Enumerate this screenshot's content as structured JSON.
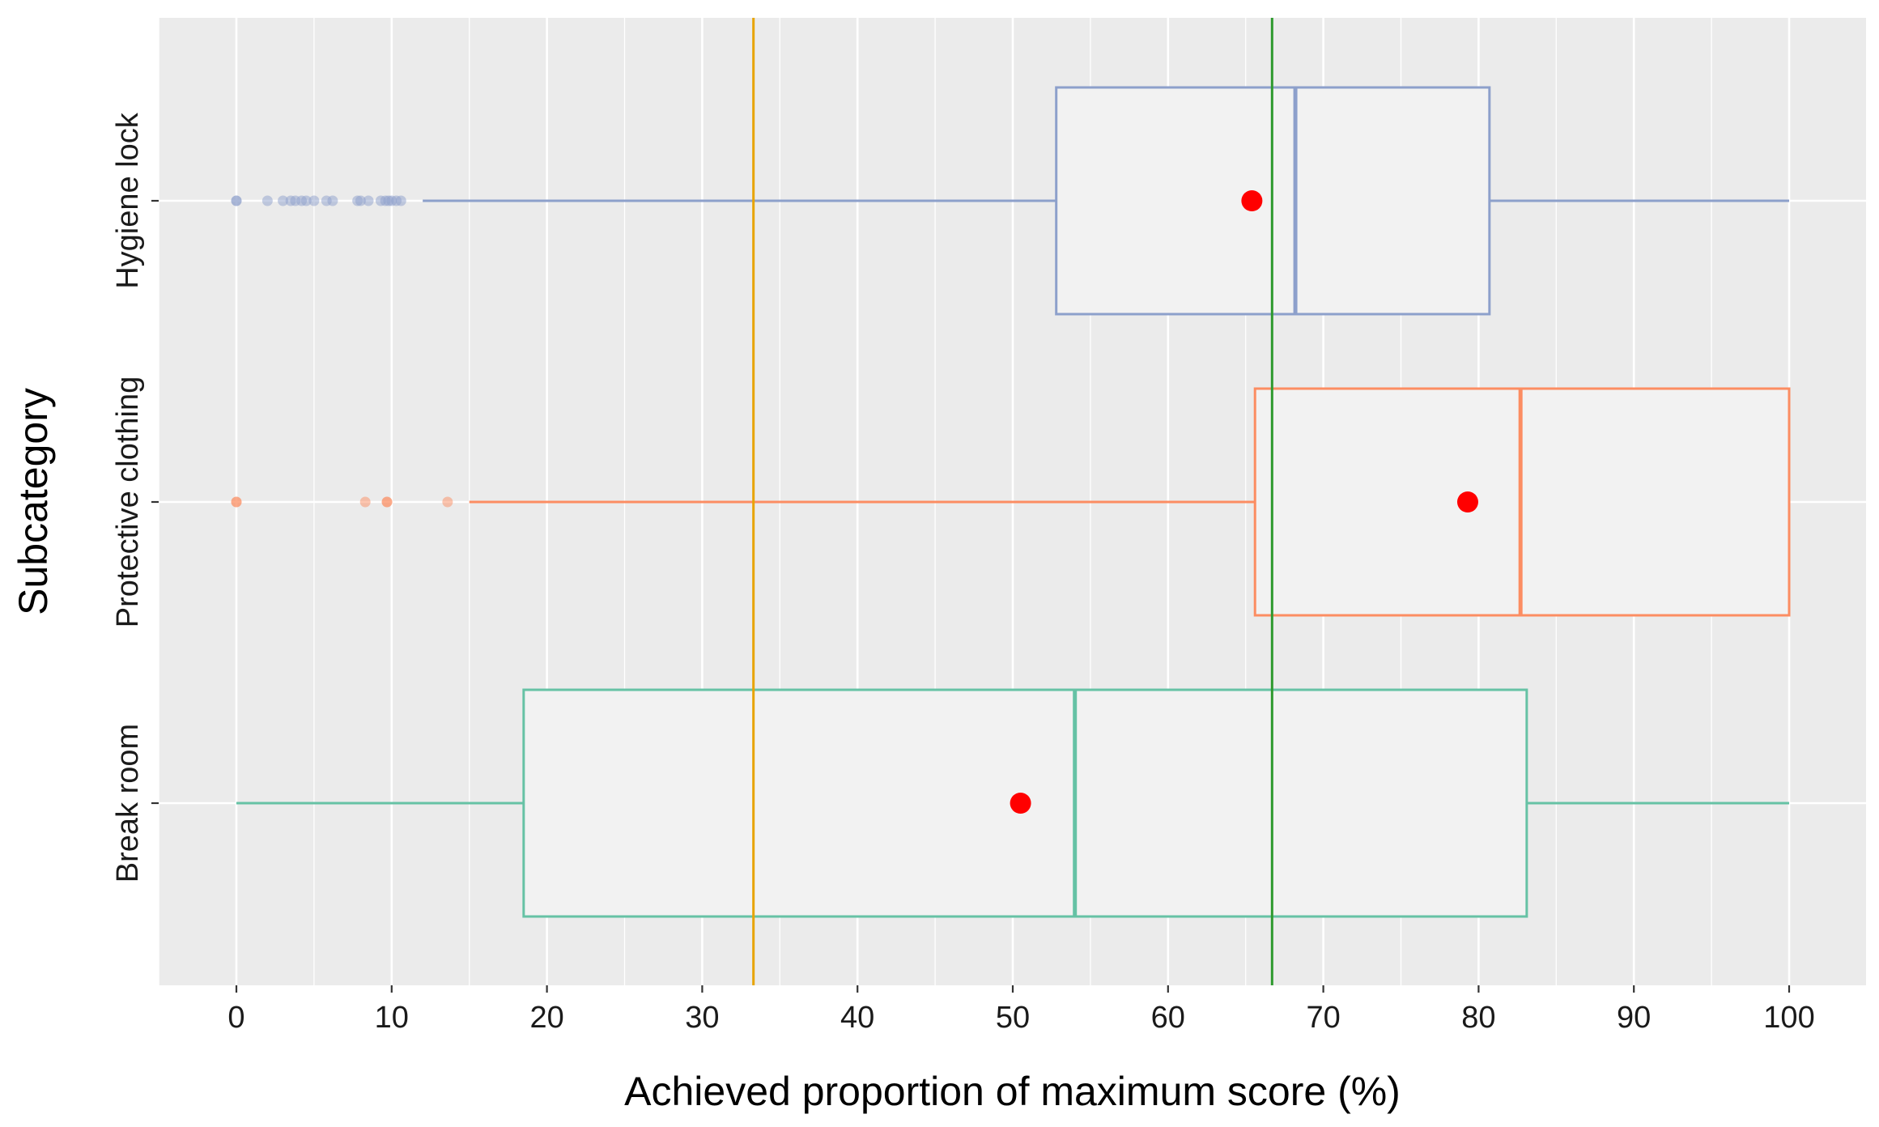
{
  "chart_data": {
    "type": "boxplot",
    "orientation": "horizontal",
    "xlabel": "Achieved proportion of maximum score (%)",
    "ylabel": "Subcategory",
    "xlim": [
      -5,
      105
    ],
    "x_ticks": [
      0,
      10,
      20,
      30,
      40,
      50,
      60,
      70,
      80,
      90,
      100
    ],
    "grid": true,
    "reference_lines": [
      {
        "name": "one-third",
        "x": 33.3,
        "color": "#E8A400"
      },
      {
        "name": "two-thirds",
        "x": 66.7,
        "color": "#2E9A2E"
      }
    ],
    "categories": [
      {
        "label": "Hygiene lock",
        "color": "#8DA0CB",
        "whisker_low": 12,
        "q1": 52.8,
        "median": 68.2,
        "q3": 80.7,
        "whisker_high": 100,
        "mean": 65.4,
        "outliers": [
          0,
          0,
          2,
          3,
          3.5,
          3.8,
          4.2,
          4.5,
          5,
          5.8,
          6.2,
          7.8,
          8,
          8.5,
          9.3,
          9.6,
          9.8,
          10,
          10.3,
          10.6
        ]
      },
      {
        "label": "Protective clothing",
        "color": "#FC8D62",
        "whisker_low": 15,
        "q1": 65.6,
        "median": 82.7,
        "q3": 100,
        "whisker_high": 100,
        "mean": 79.3,
        "outliers": [
          0,
          0,
          8.3,
          9.7,
          9.7,
          13.6
        ]
      },
      {
        "label": "Break room",
        "color": "#66C2A5",
        "whisker_low": 0,
        "q1": 18.5,
        "median": 54,
        "q3": 83.1,
        "whisker_high": 100,
        "mean": 50.5,
        "outliers": []
      }
    ],
    "mean_marker_color": "#FF0000"
  }
}
